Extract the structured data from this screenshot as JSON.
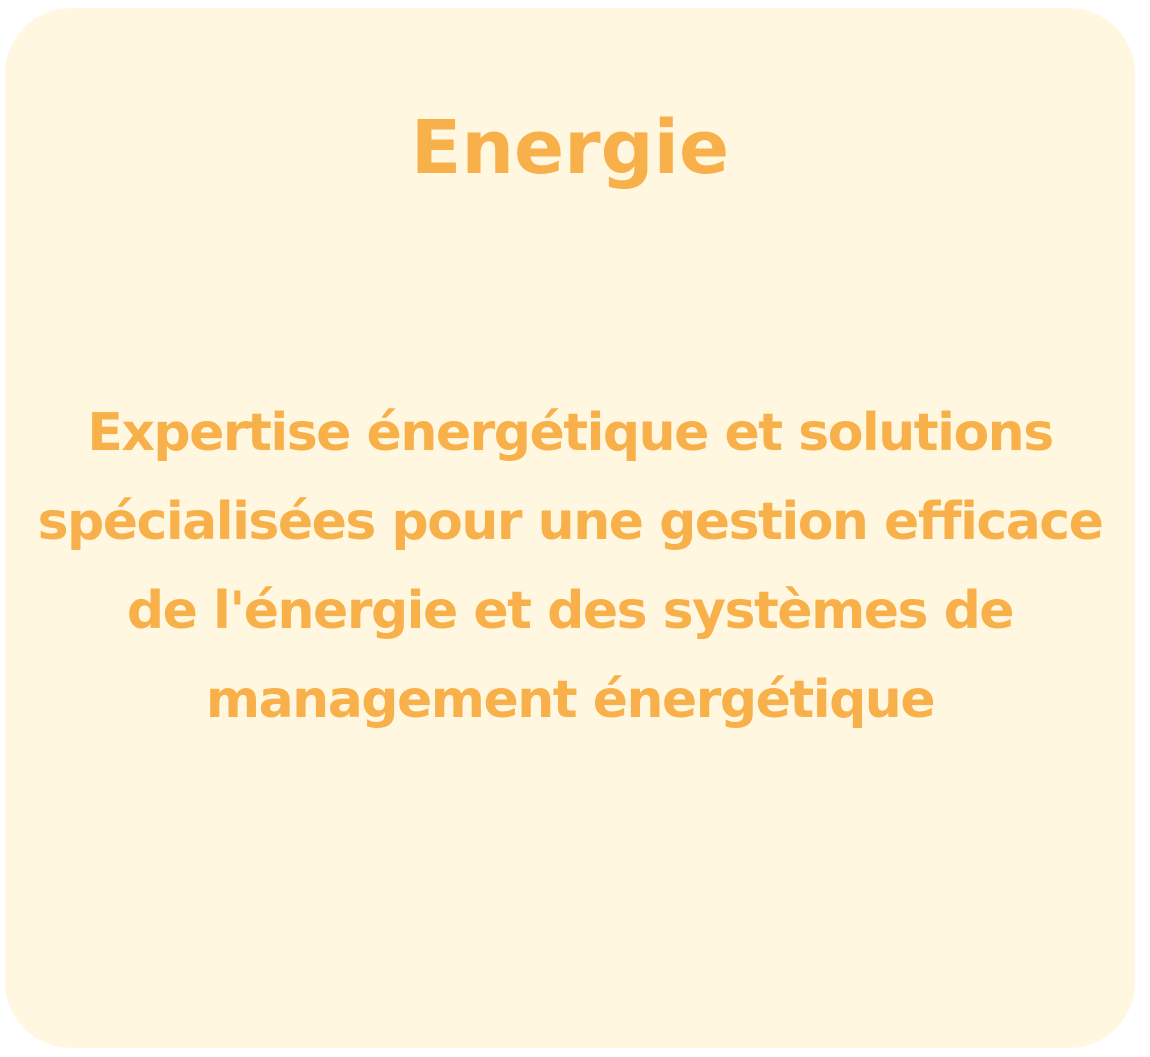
{
  "card": {
    "title": "Energie",
    "description": "Expertise énergétique et solutions spécialisées pour une gestion efficace de l'énergie et des systèmes de management énergétique"
  },
  "colors": {
    "card_background": "#FFF7E0",
    "text": "#F8B04A"
  }
}
